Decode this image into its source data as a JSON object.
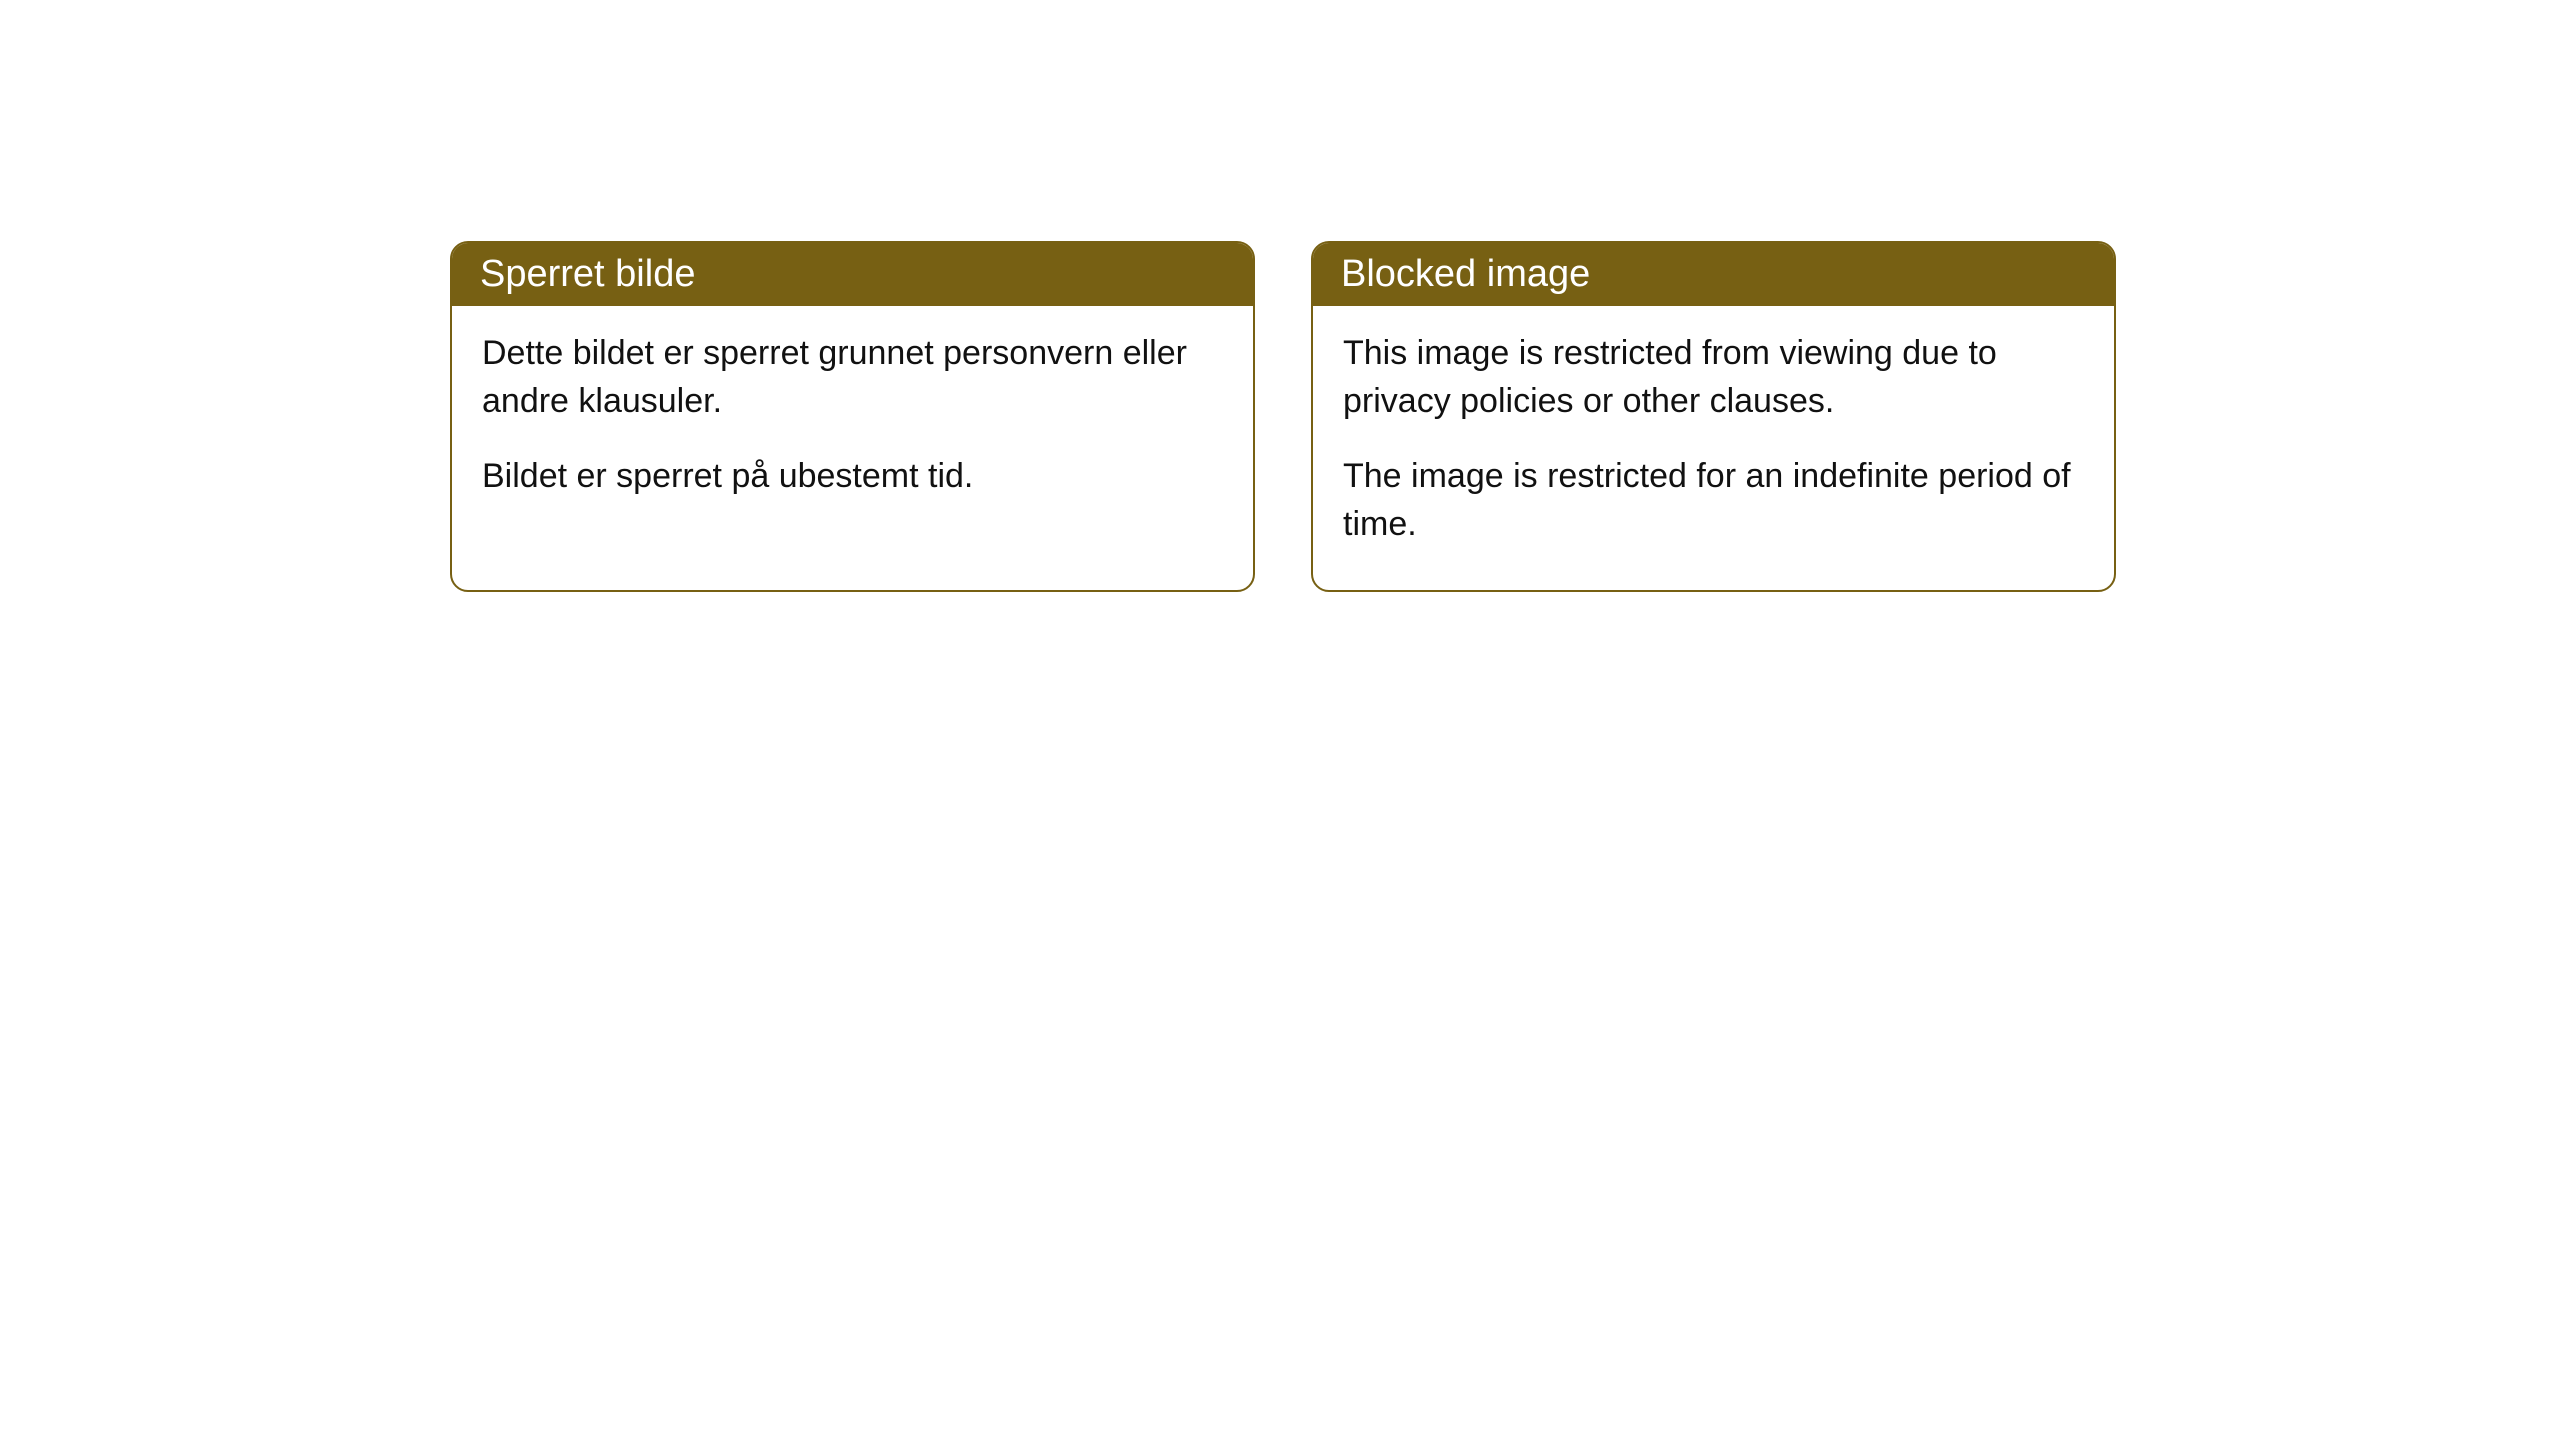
{
  "cards": [
    {
      "title": "Sperret bilde",
      "para1": "Dette bildet er sperret grunnet personvern eller andre klausuler.",
      "para2": "Bildet er sperret på ubestemt tid."
    },
    {
      "title": "Blocked image",
      "para1": "This image is restricted from viewing due to privacy policies or other clauses.",
      "para2": "The image is restricted for an indefinite period of time."
    }
  ],
  "style": {
    "header_bg": "#776013",
    "header_text_color": "#ffffff",
    "border_color": "#776013",
    "body_bg": "#ffffff",
    "body_text_color": "#111111",
    "border_radius": 18,
    "title_fontsize": 38,
    "body_fontsize": 34
  }
}
